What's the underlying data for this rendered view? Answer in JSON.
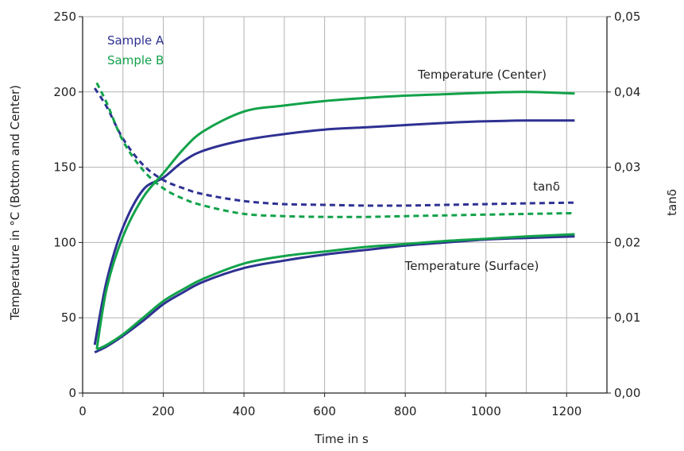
{
  "colors": {
    "sample_a": "#2e3192",
    "sample_b": "#12a24a",
    "grid": "#b3b3b3",
    "axis": "#222222"
  },
  "chart_data": {
    "type": "line",
    "xlabel": "Time in s",
    "ylabel": "Temperature in °C (Bottom and Center)",
    "y2label": "tanδ",
    "xlim": [
      0,
      1300
    ],
    "ylim": [
      0,
      250
    ],
    "y2lim": [
      0,
      0.05
    ],
    "x_ticks": [
      0,
      200,
      400,
      600,
      800,
      1000,
      1200
    ],
    "x_tick_labels": [
      "0",
      "200",
      "400",
      "600",
      "800",
      "1000",
      "1200"
    ],
    "y_ticks": [
      0,
      50,
      100,
      150,
      200,
      250
    ],
    "y_tick_labels": [
      "0",
      "50",
      "100",
      "150",
      "200",
      "250"
    ],
    "y2_ticks": [
      0,
      0.01,
      0.02,
      0.03,
      0.04,
      0.05
    ],
    "y2_tick_labels": [
      "0,00",
      "0,01",
      "0,02",
      "0,03",
      "0,04",
      "0,05"
    ],
    "grid": "vertical",
    "legend": [
      {
        "name": "Sample A",
        "color": "#2e3192"
      },
      {
        "name": "Sample B",
        "color": "#12a24a"
      }
    ],
    "annotations": {
      "center": "Temperature (Center)",
      "tand": "tanδ",
      "surface": "Temperature (Surface)"
    },
    "series": [
      {
        "id": "a-center",
        "sample": "Sample A",
        "group": "center",
        "axis": "left",
        "style": "solid",
        "x": [
          30,
          60,
          100,
          150,
          200,
          250,
          300,
          400,
          500,
          600,
          700,
          800,
          900,
          1000,
          1100,
          1220
        ],
        "y": [
          32,
          75,
          110,
          135,
          143,
          154,
          161,
          168,
          172,
          175,
          176.5,
          178,
          179.5,
          180.5,
          181,
          181
        ]
      },
      {
        "id": "b-center",
        "sample": "Sample B",
        "group": "center",
        "axis": "left",
        "style": "solid",
        "x": [
          35,
          60,
          100,
          150,
          200,
          250,
          300,
          400,
          500,
          600,
          700,
          800,
          900,
          1000,
          1100,
          1220
        ],
        "y": [
          29,
          70,
          104,
          130,
          146,
          162,
          174,
          187,
          191,
          194,
          196,
          197.5,
          198.5,
          199.5,
          200,
          199
        ]
      },
      {
        "id": "a-surface",
        "sample": "Sample A",
        "group": "surface",
        "axis": "left",
        "style": "solid",
        "x": [
          30,
          60,
          100,
          150,
          200,
          250,
          300,
          400,
          500,
          600,
          700,
          800,
          900,
          1000,
          1100,
          1220
        ],
        "y": [
          27,
          31,
          38,
          48,
          59,
          67,
          74,
          83,
          88,
          92,
          95,
          98,
          100,
          102,
          103,
          104
        ]
      },
      {
        "id": "b-surface",
        "sample": "Sample B",
        "group": "surface",
        "axis": "left",
        "style": "solid",
        "x": [
          35,
          60,
          100,
          150,
          200,
          250,
          300,
          400,
          500,
          600,
          700,
          800,
          900,
          1000,
          1100,
          1220
        ],
        "y": [
          29,
          32,
          39,
          50,
          61,
          69,
          76,
          86,
          91,
          94,
          97,
          99,
          101,
          102.5,
          104,
          105.5
        ]
      },
      {
        "id": "a-tand",
        "sample": "Sample A",
        "group": "tand",
        "axis": "right",
        "style": "dashed",
        "x": [
          30,
          60,
          100,
          150,
          200,
          250,
          300,
          400,
          500,
          600,
          700,
          800,
          900,
          1000,
          1100,
          1220
        ],
        "y": [
          0.0405,
          0.038,
          0.0338,
          0.0303,
          0.0283,
          0.0272,
          0.0264,
          0.0255,
          0.0251,
          0.025,
          0.0249,
          0.0249,
          0.025,
          0.0251,
          0.0252,
          0.0253
        ]
      },
      {
        "id": "b-tand",
        "sample": "Sample B",
        "group": "tand",
        "axis": "right",
        "style": "dashed",
        "x": [
          35,
          60,
          100,
          150,
          200,
          250,
          300,
          400,
          500,
          600,
          700,
          800,
          900,
          1000,
          1100,
          1220
        ],
        "y": [
          0.0412,
          0.0385,
          0.0335,
          0.0296,
          0.0272,
          0.0258,
          0.0249,
          0.0238,
          0.0235,
          0.0234,
          0.0234,
          0.0235,
          0.0236,
          0.0237,
          0.0238,
          0.0239
        ]
      }
    ]
  }
}
